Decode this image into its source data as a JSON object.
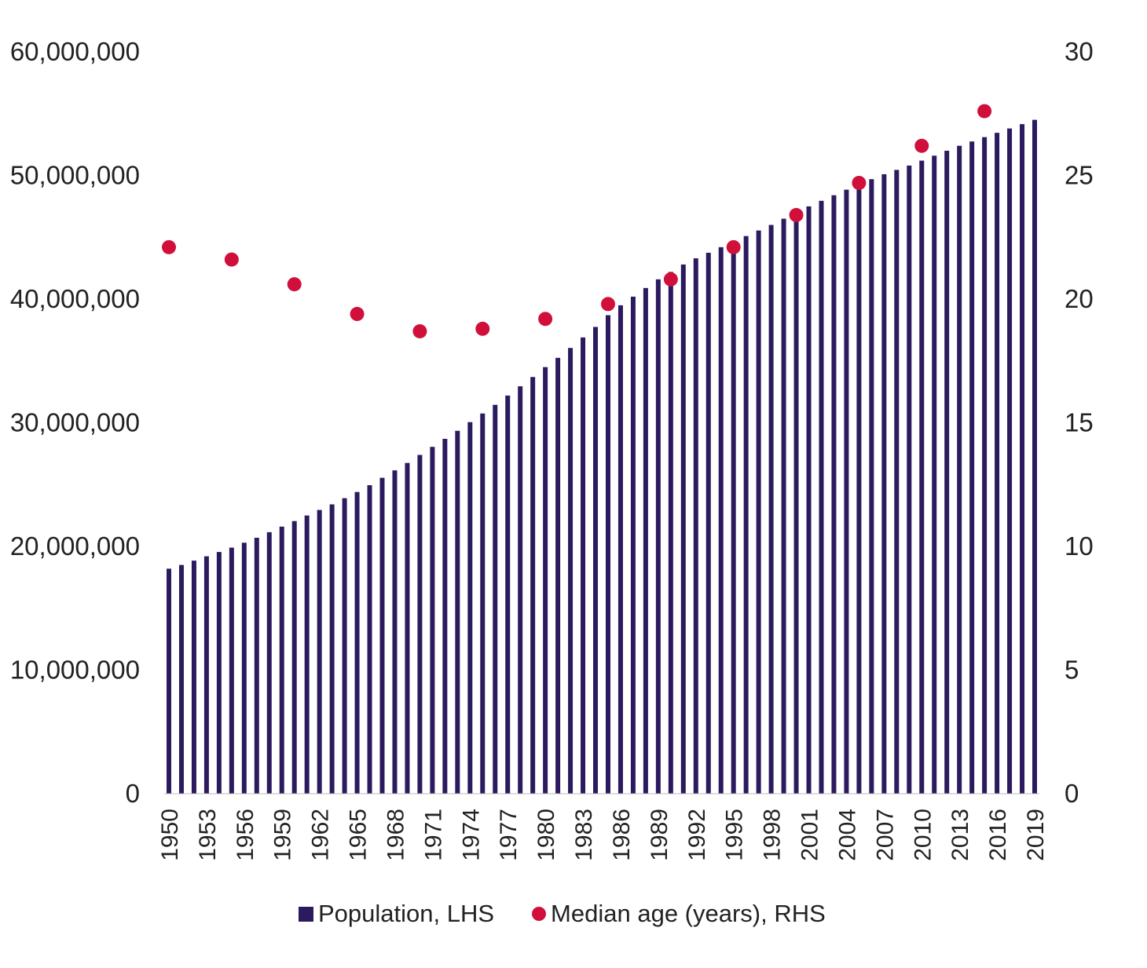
{
  "chart_data": {
    "type": "bar",
    "x": [
      1950,
      1951,
      1952,
      1953,
      1954,
      1955,
      1956,
      1957,
      1958,
      1959,
      1960,
      1961,
      1962,
      1963,
      1964,
      1965,
      1966,
      1967,
      1968,
      1969,
      1970,
      1971,
      1972,
      1973,
      1974,
      1975,
      1976,
      1977,
      1978,
      1979,
      1980,
      1981,
      1982,
      1983,
      1984,
      1985,
      1986,
      1987,
      1988,
      1989,
      1990,
      1991,
      1992,
      1993,
      1994,
      1995,
      1996,
      1997,
      1998,
      1999,
      2000,
      2001,
      2002,
      2003,
      2004,
      2005,
      2006,
      2007,
      2008,
      2009,
      2010,
      2011,
      2012,
      2013,
      2014,
      2015,
      2016,
      2017,
      2018,
      2019
    ],
    "x_tick_labels": [
      "1950",
      "1953",
      "1956",
      "1959",
      "1962",
      "1965",
      "1968",
      "1971",
      "1974",
      "1977",
      "1980",
      "1983",
      "1986",
      "1989",
      "1992",
      "1995",
      "1998",
      "2001",
      "2004",
      "2007",
      "2010",
      "2013",
      "2016",
      "2019"
    ],
    "series": [
      {
        "name": "Population, LHS",
        "type": "bar",
        "axis": "left",
        "color": "#2b1a5e",
        "values": [
          18200000,
          18500000,
          18850000,
          19200000,
          19550000,
          19900000,
          20300000,
          20700000,
          21150000,
          21600000,
          22050000,
          22500000,
          22950000,
          23400000,
          23900000,
          24400000,
          24950000,
          25550000,
          26150000,
          26750000,
          27400000,
          28050000,
          28700000,
          29350000,
          30050000,
          30750000,
          31450000,
          32200000,
          32950000,
          33700000,
          34500000,
          35250000,
          36050000,
          36900000,
          37750000,
          38700000,
          39500000,
          40200000,
          40900000,
          41600000,
          42200000,
          42800000,
          43300000,
          43750000,
          44200000,
          44650000,
          45100000,
          45550000,
          46000000,
          46500000,
          47000000,
          47500000,
          47950000,
          48400000,
          48850000,
          49300000,
          49700000,
          50100000,
          50450000,
          50800000,
          51200000,
          51600000,
          52000000,
          52400000,
          52750000,
          53100000,
          53450000,
          53800000,
          54150000,
          54500000
        ]
      },
      {
        "name": "Median age (years), RHS",
        "type": "scatter",
        "axis": "right",
        "color": "#d0103a",
        "x": [
          1950,
          1955,
          1960,
          1965,
          1970,
          1975,
          1980,
          1985,
          1990,
          1995,
          2000,
          2005,
          2010,
          2015
        ],
        "values": [
          22.1,
          21.6,
          20.6,
          19.4,
          18.7,
          18.8,
          19.2,
          19.8,
          20.8,
          22.1,
          23.4,
          24.7,
          26.2,
          27.6
        ]
      }
    ],
    "y_left": {
      "min": 0,
      "max": 60000000,
      "ticks": [
        "0",
        "10,000,000",
        "20,000,000",
        "30,000,000",
        "40,000,000",
        "50,000,000",
        "60,000,000"
      ]
    },
    "y_right": {
      "min": 0,
      "max": 30,
      "ticks": [
        "0",
        "5",
        "10",
        "15",
        "20",
        "25",
        "30"
      ]
    },
    "grid": false,
    "legend_position": "bottom"
  },
  "legend": {
    "population_label": "Population, LHS",
    "median_age_label": "Median age (years), RHS"
  }
}
